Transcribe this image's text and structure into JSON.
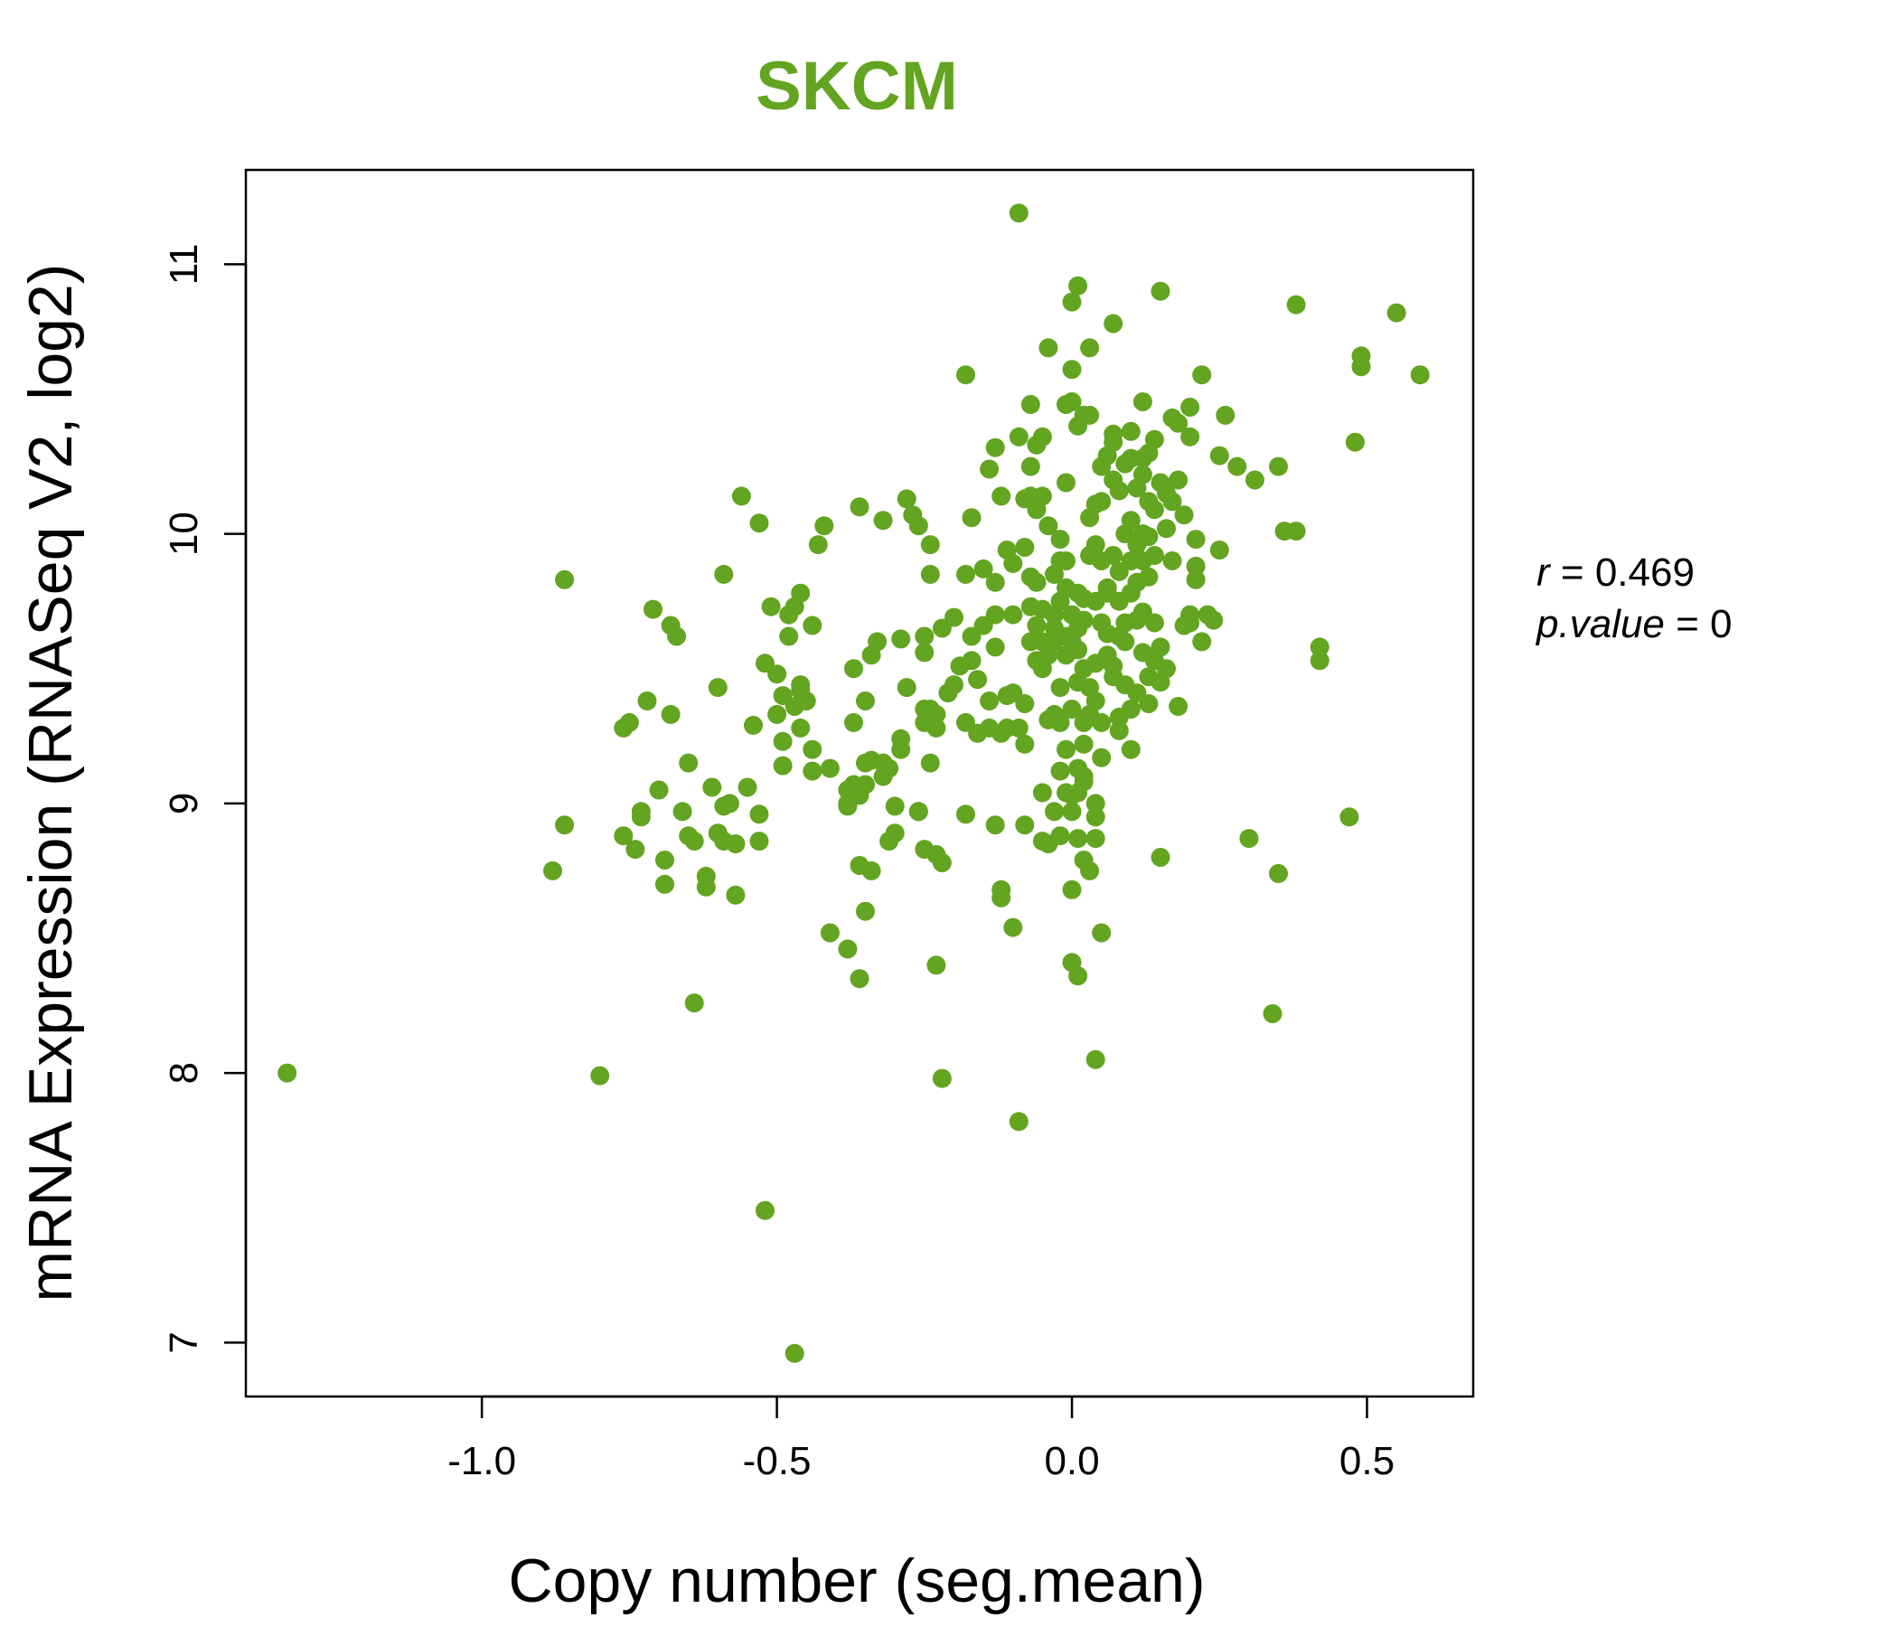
{
  "colors": {
    "accent": "#63a420"
  },
  "chart_data": {
    "type": "scatter",
    "title": "SKCM",
    "xlabel": "Copy number (seg.mean)",
    "ylabel": "mRNA Expression (RNASeq V2, log2)",
    "xlim": [
      -1.4,
      0.68
    ],
    "ylim": [
      6.8,
      11.35
    ],
    "xticks": [
      -1.0,
      -0.5,
      0.0,
      0.5
    ],
    "xtick_labels": [
      "-1.0",
      "-0.5",
      "0.0",
      "0.5"
    ],
    "yticks": [
      7,
      8,
      9,
      10,
      11
    ],
    "ytick_labels": [
      "7",
      "8",
      "9",
      "10",
      "11"
    ],
    "grid": false,
    "annotation": {
      "r_label": "r",
      "r_value": "0.469",
      "p_label": "p.value",
      "p_value": "0"
    },
    "points": [
      [
        -1.33,
        8.0
      ],
      [
        -0.88,
        8.75
      ],
      [
        -0.86,
        8.92
      ],
      [
        -0.86,
        9.83
      ],
      [
        -0.8,
        7.99
      ],
      [
        -0.76,
        9.28
      ],
      [
        -0.75,
        9.3
      ],
      [
        -0.76,
        8.88
      ],
      [
        -0.74,
        8.83
      ],
      [
        -0.73,
        8.97
      ],
      [
        -0.73,
        8.95
      ],
      [
        -0.72,
        9.38
      ],
      [
        -0.71,
        9.72
      ],
      [
        -0.7,
        9.05
      ],
      [
        -0.69,
        8.79
      ],
      [
        -0.69,
        8.7
      ],
      [
        -0.68,
        9.33
      ],
      [
        -0.68,
        9.66
      ],
      [
        -0.67,
        9.62
      ],
      [
        -0.66,
        8.97
      ],
      [
        -0.65,
        9.15
      ],
      [
        -0.65,
        8.88
      ],
      [
        -0.64,
        8.86
      ],
      [
        -0.64,
        8.26
      ],
      [
        -0.62,
        8.73
      ],
      [
        -0.62,
        8.69
      ],
      [
        -0.61,
        9.06
      ],
      [
        -0.6,
        8.89
      ],
      [
        -0.6,
        9.43
      ],
      [
        -0.59,
        8.86
      ],
      [
        -0.59,
        8.99
      ],
      [
        -0.59,
        9.85
      ],
      [
        -0.58,
        9.0
      ],
      [
        -0.57,
        8.85
      ],
      [
        -0.57,
        8.66
      ],
      [
        -0.56,
        10.14
      ],
      [
        -0.55,
        9.06
      ],
      [
        -0.54,
        9.29
      ],
      [
        -0.53,
        8.86
      ],
      [
        -0.53,
        8.96
      ],
      [
        -0.53,
        10.04
      ],
      [
        -0.52,
        9.52
      ],
      [
        -0.52,
        7.49
      ],
      [
        -0.51,
        9.73
      ],
      [
        -0.5,
        9.48
      ],
      [
        -0.5,
        9.33
      ],
      [
        -0.49,
        9.23
      ],
      [
        -0.49,
        9.14
      ],
      [
        -0.49,
        9.4
      ],
      [
        -0.48,
        9.62
      ],
      [
        -0.48,
        9.7
      ],
      [
        -0.47,
        9.73
      ],
      [
        -0.47,
        6.96
      ],
      [
        -0.47,
        9.36
      ],
      [
        -0.46,
        9.44
      ],
      [
        -0.46,
        9.42
      ],
      [
        -0.46,
        9.78
      ],
      [
        -0.46,
        9.28
      ],
      [
        -0.45,
        9.38
      ],
      [
        -0.44,
        9.2
      ],
      [
        -0.44,
        9.12
      ],
      [
        -0.44,
        9.66
      ],
      [
        -0.43,
        9.96
      ],
      [
        -0.42,
        10.03
      ],
      [
        -0.41,
        9.13
      ],
      [
        -0.41,
        8.52
      ],
      [
        -0.38,
        8.46
      ],
      [
        -0.38,
        9.05
      ],
      [
        -0.38,
        9.0
      ],
      [
        -0.38,
        8.99
      ],
      [
        -0.37,
        9.5
      ],
      [
        -0.37,
        9.3
      ],
      [
        -0.37,
        9.07
      ],
      [
        -0.36,
        9.03
      ],
      [
        -0.36,
        10.1
      ],
      [
        -0.36,
        8.35
      ],
      [
        -0.36,
        8.77
      ],
      [
        -0.35,
        9.07
      ],
      [
        -0.35,
        8.6
      ],
      [
        -0.35,
        9.15
      ],
      [
        -0.35,
        9.38
      ],
      [
        -0.34,
        9.55
      ],
      [
        -0.34,
        8.75
      ],
      [
        -0.34,
        9.16
      ],
      [
        -0.33,
        9.6
      ],
      [
        -0.32,
        9.15
      ],
      [
        -0.32,
        10.05
      ],
      [
        -0.32,
        9.1
      ],
      [
        -0.31,
        8.86
      ],
      [
        -0.31,
        9.13
      ],
      [
        -0.3,
        8.99
      ],
      [
        -0.3,
        8.89
      ],
      [
        -0.29,
        9.61
      ],
      [
        -0.29,
        9.24
      ],
      [
        -0.29,
        9.2
      ],
      [
        -0.28,
        9.43
      ],
      [
        -0.28,
        10.13
      ],
      [
        -0.27,
        10.07
      ],
      [
        -0.26,
        8.97
      ],
      [
        -0.26,
        8.97
      ],
      [
        -0.26,
        10.03
      ],
      [
        -0.25,
        9.35
      ],
      [
        -0.25,
        9.3
      ],
      [
        -0.25,
        9.62
      ],
      [
        -0.25,
        9.56
      ],
      [
        -0.25,
        8.83
      ],
      [
        -0.24,
        9.96
      ],
      [
        -0.24,
        9.85
      ],
      [
        -0.24,
        9.15
      ],
      [
        -0.24,
        9.35
      ],
      [
        -0.23,
        8.81
      ],
      [
        -0.23,
        8.4
      ],
      [
        -0.23,
        9.33
      ],
      [
        -0.23,
        9.28
      ],
      [
        -0.22,
        8.78
      ],
      [
        -0.22,
        7.98
      ],
      [
        -0.22,
        9.65
      ],
      [
        -0.21,
        9.41
      ],
      [
        -0.2,
        9.44
      ],
      [
        -0.2,
        9.69
      ],
      [
        -0.19,
        9.51
      ],
      [
        -0.18,
        9.85
      ],
      [
        -0.18,
        9.3
      ],
      [
        -0.18,
        8.96
      ],
      [
        -0.18,
        10.59
      ],
      [
        -0.17,
        10.06
      ],
      [
        -0.17,
        9.53
      ],
      [
        -0.17,
        9.62
      ],
      [
        -0.16,
        9.26
      ],
      [
        -0.16,
        9.46
      ],
      [
        -0.15,
        9.87
      ],
      [
        -0.15,
        9.66
      ],
      [
        -0.14,
        9.28
      ],
      [
        -0.14,
        9.38
      ],
      [
        -0.14,
        10.24
      ],
      [
        -0.13,
        8.92
      ],
      [
        -0.13,
        9.82
      ],
      [
        -0.13,
        9.7
      ],
      [
        -0.13,
        10.32
      ],
      [
        -0.13,
        9.58
      ],
      [
        -0.12,
        10.14
      ],
      [
        -0.12,
        8.68
      ],
      [
        -0.12,
        9.26
      ],
      [
        -0.12,
        8.65
      ],
      [
        -0.11,
        9.4
      ],
      [
        -0.11,
        9.94
      ],
      [
        -0.11,
        9.28
      ],
      [
        -0.1,
        9.89
      ],
      [
        -0.1,
        9.41
      ],
      [
        -0.1,
        8.54
      ],
      [
        -0.1,
        9.7
      ],
      [
        -0.09,
        11.19
      ],
      [
        -0.09,
        10.36
      ],
      [
        -0.09,
        7.82
      ],
      [
        -0.09,
        9.28
      ],
      [
        -0.08,
        8.92
      ],
      [
        -0.08,
        10.13
      ],
      [
        -0.08,
        9.37
      ],
      [
        -0.08,
        9.22
      ],
      [
        -0.08,
        9.95
      ],
      [
        -0.07,
        10.48
      ],
      [
        -0.07,
        10.14
      ],
      [
        -0.07,
        9.73
      ],
      [
        -0.07,
        9.84
      ],
      [
        -0.07,
        10.25
      ],
      [
        -0.07,
        9.6
      ],
      [
        -0.06,
        9.53
      ],
      [
        -0.06,
        9.66
      ],
      [
        -0.06,
        9.82
      ],
      [
        -0.06,
        10.09
      ],
      [
        -0.06,
        10.33
      ],
      [
        -0.05,
        9.5
      ],
      [
        -0.05,
        9.6
      ],
      [
        -0.05,
        8.86
      ],
      [
        -0.05,
        9.04
      ],
      [
        -0.05,
        10.14
      ],
      [
        -0.05,
        10.36
      ],
      [
        -0.05,
        9.72
      ],
      [
        -0.04,
        10.69
      ],
      [
        -0.04,
        9.58
      ],
      [
        -0.04,
        9.31
      ],
      [
        -0.04,
        8.85
      ],
      [
        -0.04,
        9.55
      ],
      [
        -0.04,
        10.03
      ],
      [
        -0.03,
        9.6
      ],
      [
        -0.03,
        9.33
      ],
      [
        -0.03,
        8.97
      ],
      [
        -0.03,
        9.85
      ],
      [
        -0.03,
        9.7
      ],
      [
        -0.03,
        9.65
      ],
      [
        -0.02,
        9.9
      ],
      [
        -0.02,
        9.12
      ],
      [
        -0.02,
        9.43
      ],
      [
        -0.02,
        9.98
      ],
      [
        -0.02,
        9.3
      ],
      [
        -0.02,
        8.88
      ],
      [
        -0.02,
        9.75
      ],
      [
        -0.01,
        9.55
      ],
      [
        -0.01,
        9.62
      ],
      [
        -0.01,
        9.8
      ],
      [
        -0.01,
        9.04
      ],
      [
        -0.01,
        10.48
      ],
      [
        -0.01,
        9.2
      ],
      [
        -0.01,
        9.9
      ],
      [
        -0.01,
        10.19
      ],
      [
        0.0,
        8.41
      ],
      [
        0.0,
        9.6
      ],
      [
        0.0,
        9.35
      ],
      [
        0.0,
        10.61
      ],
      [
        0.0,
        8.68
      ],
      [
        0.0,
        9.7
      ],
      [
        0.0,
        8.97
      ],
      [
        0.0,
        10.49
      ],
      [
        0.0,
        9.03
      ],
      [
        0.0,
        10.86
      ],
      [
        0.01,
        10.92
      ],
      [
        0.01,
        8.36
      ],
      [
        0.01,
        9.57
      ],
      [
        0.01,
        9.45
      ],
      [
        0.01,
        9.65
      ],
      [
        0.01,
        9.13
      ],
      [
        0.01,
        10.4
      ],
      [
        0.01,
        9.78
      ],
      [
        0.01,
        9.04
      ],
      [
        0.01,
        8.87
      ],
      [
        0.02,
        9.5
      ],
      [
        0.02,
        9.3
      ],
      [
        0.02,
        9.76
      ],
      [
        0.02,
        10.44
      ],
      [
        0.02,
        9.22
      ],
      [
        0.02,
        8.79
      ],
      [
        0.02,
        9.68
      ],
      [
        0.02,
        9.08
      ],
      [
        0.02,
        9.1
      ],
      [
        0.03,
        10.06
      ],
      [
        0.03,
        9.92
      ],
      [
        0.03,
        9.33
      ],
      [
        0.03,
        10.69
      ],
      [
        0.03,
        9.43
      ],
      [
        0.03,
        8.75
      ],
      [
        0.03,
        10.44
      ],
      [
        0.04,
        9.0
      ],
      [
        0.04,
        9.38
      ],
      [
        0.04,
        9.75
      ],
      [
        0.04,
        9.52
      ],
      [
        0.04,
        10.11
      ],
      [
        0.04,
        9.96
      ],
      [
        0.04,
        8.95
      ],
      [
        0.04,
        8.87
      ],
      [
        0.04,
        8.05
      ],
      [
        0.05,
        10.25
      ],
      [
        0.05,
        9.67
      ],
      [
        0.05,
        9.3
      ],
      [
        0.05,
        10.12
      ],
      [
        0.05,
        9.9
      ],
      [
        0.05,
        9.17
      ],
      [
        0.05,
        8.52
      ],
      [
        0.06,
        9.78
      ],
      [
        0.06,
        9.55
      ],
      [
        0.06,
        10.29
      ],
      [
        0.06,
        9.63
      ],
      [
        0.06,
        9.8
      ],
      [
        0.07,
        10.78
      ],
      [
        0.07,
        10.37
      ],
      [
        0.07,
        9.92
      ],
      [
        0.07,
        9.51
      ],
      [
        0.07,
        10.2
      ],
      [
        0.07,
        9.47
      ],
      [
        0.07,
        10.34
      ],
      [
        0.08,
        9.32
      ],
      [
        0.08,
        9.75
      ],
      [
        0.08,
        10.16
      ],
      [
        0.08,
        9.62
      ],
      [
        0.08,
        9.27
      ],
      [
        0.08,
        9.86
      ],
      [
        0.09,
        10.0
      ],
      [
        0.09,
        9.67
      ],
      [
        0.09,
        10.26
      ],
      [
        0.09,
        9.44
      ],
      [
        0.09,
        9.6
      ],
      [
        0.1,
        9.9
      ],
      [
        0.1,
        10.28
      ],
      [
        0.1,
        10.38
      ],
      [
        0.1,
        9.35
      ],
      [
        0.1,
        9.2
      ],
      [
        0.1,
        9.78
      ],
      [
        0.1,
        10.05
      ],
      [
        0.11,
        10.17
      ],
      [
        0.11,
        9.82
      ],
      [
        0.11,
        9.68
      ],
      [
        0.11,
        9.41
      ],
      [
        0.11,
        9.96
      ],
      [
        0.12,
        10.28
      ],
      [
        0.12,
        9.71
      ],
      [
        0.12,
        9.9
      ],
      [
        0.12,
        10.0
      ],
      [
        0.12,
        10.22
      ],
      [
        0.12,
        9.56
      ],
      [
        0.12,
        10.49
      ],
      [
        0.13,
        10.3
      ],
      [
        0.13,
        9.84
      ],
      [
        0.13,
        9.47
      ],
      [
        0.13,
        9.99
      ],
      [
        0.13,
        10.12
      ],
      [
        0.13,
        9.37
      ],
      [
        0.14,
        10.35
      ],
      [
        0.14,
        9.53
      ],
      [
        0.14,
        10.09
      ],
      [
        0.14,
        9.67
      ],
      [
        0.14,
        9.92
      ],
      [
        0.15,
        10.9
      ],
      [
        0.15,
        8.8
      ],
      [
        0.15,
        9.58
      ],
      [
        0.15,
        10.19
      ],
      [
        0.15,
        9.45
      ],
      [
        0.16,
        10.02
      ],
      [
        0.16,
        10.15
      ],
      [
        0.16,
        9.5
      ],
      [
        0.17,
        10.43
      ],
      [
        0.17,
        9.9
      ],
      [
        0.17,
        10.12
      ],
      [
        0.18,
        10.41
      ],
      [
        0.18,
        9.36
      ],
      [
        0.18,
        10.2
      ],
      [
        0.19,
        10.07
      ],
      [
        0.19,
        9.66
      ],
      [
        0.2,
        9.67
      ],
      [
        0.2,
        10.47
      ],
      [
        0.2,
        10.36
      ],
      [
        0.2,
        9.7
      ],
      [
        0.21,
        9.98
      ],
      [
        0.21,
        9.88
      ],
      [
        0.21,
        9.83
      ],
      [
        0.22,
        10.59
      ],
      [
        0.22,
        9.6
      ],
      [
        0.23,
        9.7
      ],
      [
        0.24,
        9.68
      ],
      [
        0.25,
        10.29
      ],
      [
        0.25,
        9.94
      ],
      [
        0.26,
        10.44
      ],
      [
        0.28,
        10.25
      ],
      [
        0.3,
        8.87
      ],
      [
        0.31,
        10.2
      ],
      [
        0.34,
        8.22
      ],
      [
        0.35,
        8.74
      ],
      [
        0.35,
        10.25
      ],
      [
        0.36,
        10.01
      ],
      [
        0.38,
        10.85
      ],
      [
        0.38,
        10.01
      ],
      [
        0.42,
        9.58
      ],
      [
        0.42,
        9.53
      ],
      [
        0.47,
        8.95
      ],
      [
        0.48,
        10.34
      ],
      [
        0.49,
        10.66
      ],
      [
        0.49,
        10.62
      ],
      [
        0.55,
        10.82
      ],
      [
        0.59,
        10.59
      ]
    ]
  }
}
